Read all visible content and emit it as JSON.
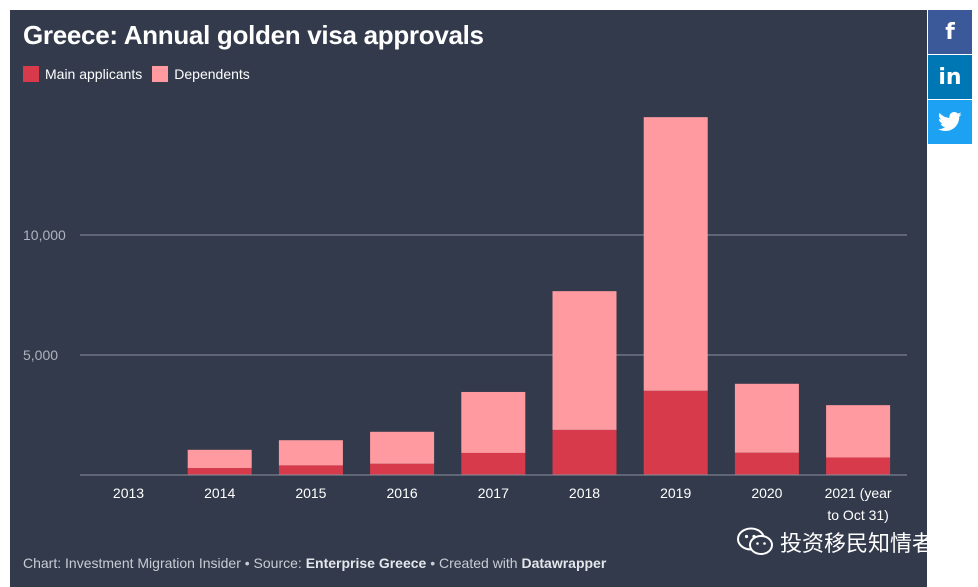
{
  "social": {
    "facebook_label": "f",
    "linkedin_label": "in"
  },
  "chart_data": {
    "type": "bar",
    "stacked": true,
    "title": "Greece: Annual golden visa approvals",
    "categories": [
      "2013",
      "2014",
      "2015",
      "2016",
      "2017",
      "2018",
      "2019",
      "2020",
      "2021 (year to Oct 31)"
    ],
    "category_lines": [
      [
        "2013"
      ],
      [
        "2014"
      ],
      [
        "2015"
      ],
      [
        "2016"
      ],
      [
        "2017"
      ],
      [
        "2018"
      ],
      [
        "2019"
      ],
      [
        "2020"
      ],
      [
        "2021 (year",
        "to Oct 31)"
      ]
    ],
    "series": [
      {
        "name": "Main applicants",
        "color": "#d63a4b",
        "values": [
          2,
          290,
          400,
          470,
          920,
          1880,
          3510,
          930,
          730
        ]
      },
      {
        "name": "Dependents",
        "color": "#ff9ba0",
        "values": [
          3,
          760,
          1050,
          1330,
          2540,
          5780,
          11400,
          2870,
          2180
        ]
      }
    ],
    "y_ticks": [
      5000,
      10000
    ],
    "y_tick_labels": [
      "5,000",
      "10,000"
    ],
    "ylim": [
      0,
      15000
    ],
    "grid": true,
    "legend_position": "top-left"
  },
  "footer": {
    "prefix": "Chart: Investment Migration Insider • Source: ",
    "source": "Enterprise Greece",
    "mid": " • Created with ",
    "tool": "Datawrapper"
  },
  "watermark": {
    "text": "投资移民知情者"
  }
}
